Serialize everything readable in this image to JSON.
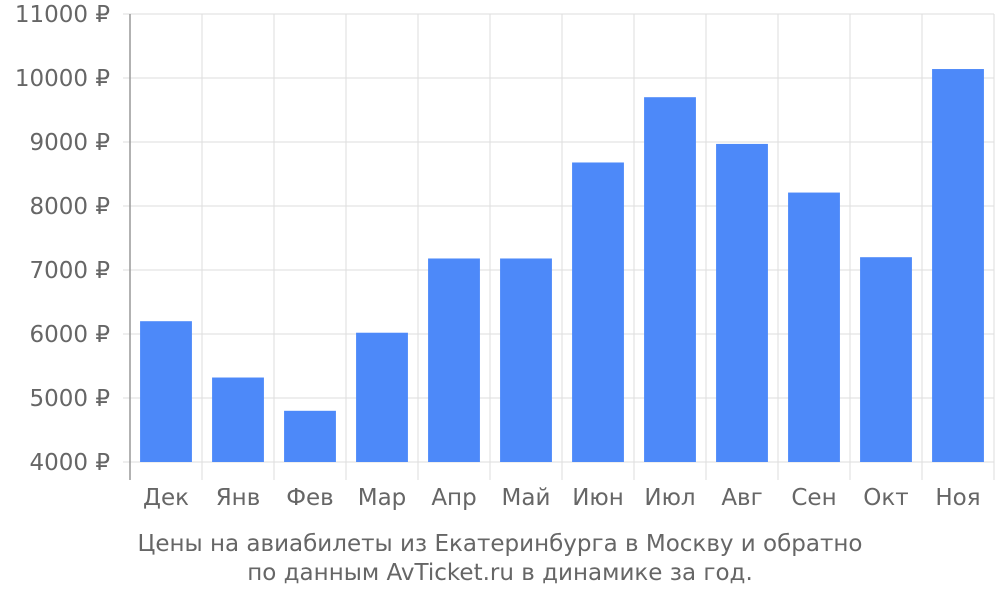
{
  "chart_data": {
    "type": "bar",
    "categories": [
      "Дек",
      "Янв",
      "Фев",
      "Мар",
      "Апр",
      "Май",
      "Июн",
      "Июл",
      "Авг",
      "Сен",
      "Окт",
      "Ноя"
    ],
    "values": [
      6200,
      5320,
      4800,
      6020,
      7180,
      7180,
      8680,
      9700,
      8970,
      8210,
      7200,
      10140
    ],
    "ylim": [
      4000,
      11000
    ],
    "yticks": [
      4000,
      5000,
      6000,
      7000,
      8000,
      9000,
      10000,
      11000
    ],
    "ytick_suffix": " ₽",
    "grid": true,
    "title": "",
    "xlabel": "",
    "ylabel": "",
    "colors": {
      "bar": "#4d89f9",
      "grid": "#dddddd",
      "axis": "#999999",
      "text": "#666666"
    }
  },
  "caption": {
    "line1": "Цены на авиабилеты из Екатеринбурга в Москву и обратно",
    "line2": "по данным AvTicket.ru в динамике за год."
  }
}
